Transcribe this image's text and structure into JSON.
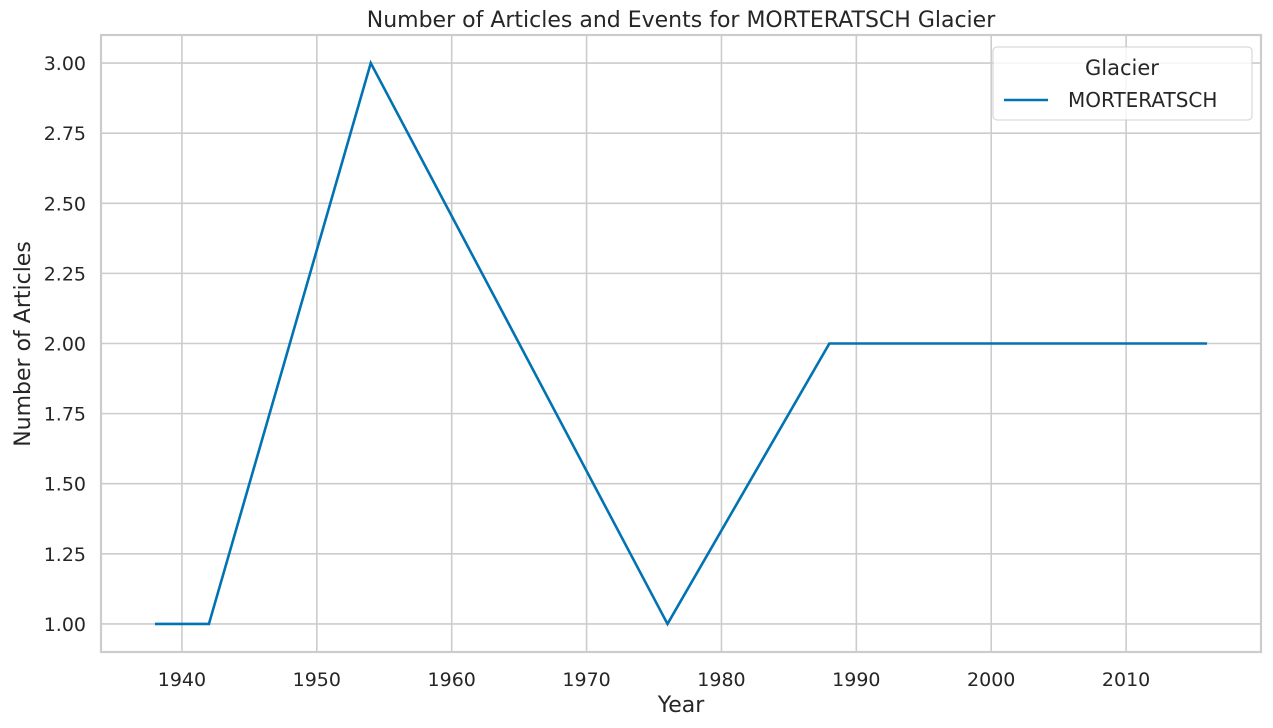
{
  "chart_data": {
    "type": "line",
    "title": "Number of Articles and Events for MORTERATSCH Glacier",
    "xlabel": "Year",
    "ylabel": "Number of Articles",
    "xlim": [
      1934,
      2020
    ],
    "ylim": [
      0.9,
      3.1
    ],
    "xticks": [
      1940,
      1950,
      1960,
      1970,
      1980,
      1990,
      2000,
      2010
    ],
    "yticks": [
      1.0,
      1.25,
      1.5,
      1.75,
      2.0,
      2.25,
      2.5,
      2.75,
      3.0
    ],
    "yticks_labels": [
      "1.00",
      "1.25",
      "1.50",
      "1.75",
      "2.00",
      "2.25",
      "2.50",
      "2.75",
      "3.00"
    ],
    "grid": true,
    "legend": {
      "title": "Glacier",
      "placement": "top-right"
    },
    "series": [
      {
        "name": "MORTERATSCH",
        "color": "#0173b2",
        "x": [
          1938,
          1942,
          1954,
          1976,
          1988,
          2016
        ],
        "y": [
          1,
          1,
          3,
          1,
          2,
          2
        ]
      }
    ]
  }
}
